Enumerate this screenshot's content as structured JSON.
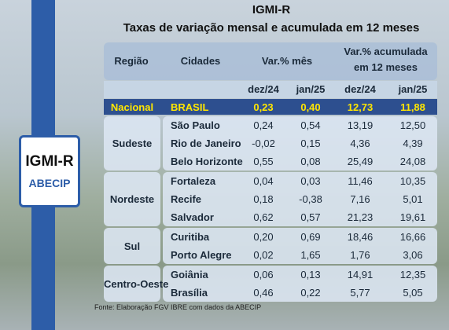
{
  "header": {
    "title": "IGMI-R",
    "subtitle": "Taxas de variação mensal e acumulada em 12 meses"
  },
  "logo": {
    "name": "IGMI-R",
    "org": "ABECIP"
  },
  "table": {
    "columns": [
      "Região",
      "Cidades",
      "Var.% mês",
      "Var.% acumulada em 12 meses"
    ],
    "periods": [
      "dez/24",
      "jan/25",
      "dez/24",
      "jan/25"
    ],
    "national": {
      "region": "Nacional",
      "city": "BRASIL",
      "values": [
        "0,23",
        "0,40",
        "12,73",
        "11,88"
      ]
    },
    "groups": [
      {
        "region": "Sudeste",
        "rows": [
          {
            "city": "São Paulo",
            "values": [
              "0,24",
              "0,54",
              "13,19",
              "12,50"
            ]
          },
          {
            "city": "Rio de Janeiro",
            "values": [
              "-0,02",
              "0,15",
              "4,36",
              "4,39"
            ]
          },
          {
            "city": "Belo Horizonte",
            "values": [
              "0,55",
              "0,08",
              "25,49",
              "24,08"
            ]
          }
        ]
      },
      {
        "region": "Nordeste",
        "rows": [
          {
            "city": "Fortaleza",
            "values": [
              "0,04",
              "0,03",
              "11,46",
              "10,35"
            ]
          },
          {
            "city": "Recife",
            "values": [
              "0,18",
              "-0,38",
              "7,16",
              "5,01"
            ]
          },
          {
            "city": "Salvador",
            "values": [
              "0,62",
              "0,57",
              "21,23",
              "19,61"
            ]
          }
        ]
      },
      {
        "region": "Sul",
        "rows": [
          {
            "city": "Curitiba",
            "values": [
              "0,20",
              "0,69",
              "18,46",
              "16,66"
            ]
          },
          {
            "city": "Porto Alegre",
            "values": [
              "0,02",
              "1,65",
              "1,76",
              "3,06"
            ]
          }
        ]
      },
      {
        "region": "Centro-Oeste",
        "rows": [
          {
            "city": "Goiânia",
            "values": [
              "0,06",
              "0,13",
              "14,91",
              "12,35"
            ]
          },
          {
            "city": "Brasília",
            "values": [
              "0,46",
              "0,22",
              "5,77",
              "5,05"
            ]
          }
        ]
      }
    ]
  },
  "source": "Fonte: Elaboração FGV IBRE com dados da ABECIP"
}
